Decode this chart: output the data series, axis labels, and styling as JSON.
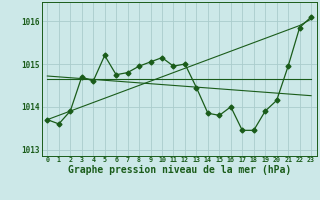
{
  "title": "Graphe pression niveau de la mer (hPa)",
  "bg_color": "#cce8e8",
  "grid_color": "#aacccc",
  "line_color": "#1a5c1a",
  "x_values": [
    0,
    1,
    2,
    3,
    4,
    5,
    6,
    7,
    8,
    9,
    10,
    11,
    12,
    13,
    14,
    15,
    16,
    17,
    18,
    19,
    20,
    21,
    22,
    23
  ],
  "y_main": [
    1013.7,
    1013.6,
    1013.9,
    1014.7,
    1014.6,
    1015.2,
    1014.75,
    1014.8,
    1014.95,
    1015.05,
    1015.15,
    1014.95,
    1015.0,
    1014.45,
    1013.85,
    1013.8,
    1014.0,
    1013.45,
    1013.45,
    1013.9,
    1014.15,
    1014.95,
    1015.85,
    1016.1
  ],
  "y_flat": [
    1014.72,
    1014.7,
    1014.68,
    1014.66,
    1014.64,
    1014.62,
    1014.6,
    1014.58,
    1014.56,
    1014.54,
    1014.52,
    1014.5,
    1014.48,
    1014.46,
    1014.44,
    1014.42,
    1014.4,
    1014.38,
    1014.36,
    1014.34,
    1014.32,
    1014.3,
    1014.28,
    1014.26
  ],
  "y_rising": [
    1013.7,
    1013.8,
    1013.9,
    1014.0,
    1014.1,
    1014.2,
    1014.3,
    1014.4,
    1014.5,
    1014.6,
    1014.7,
    1014.8,
    1014.9,
    1015.0,
    1015.1,
    1015.2,
    1015.3,
    1015.4,
    1015.5,
    1015.6,
    1015.7,
    1015.8,
    1015.9,
    1016.05
  ],
  "y_horizontal": [
    1014.65,
    1014.65,
    1014.65,
    1014.65,
    1014.65,
    1014.65,
    1014.65,
    1014.65,
    1014.65,
    1014.65,
    1014.65,
    1014.65,
    1014.65,
    1014.65,
    1014.65,
    1014.65,
    1014.65,
    1014.65,
    1014.65,
    1014.65,
    1014.65,
    1014.65,
    1014.65,
    1014.65
  ],
  "ylim": [
    1012.85,
    1016.45
  ],
  "yticks": [
    1013,
    1014,
    1015,
    1016
  ],
  "marker": "D",
  "markersize": 2.5
}
